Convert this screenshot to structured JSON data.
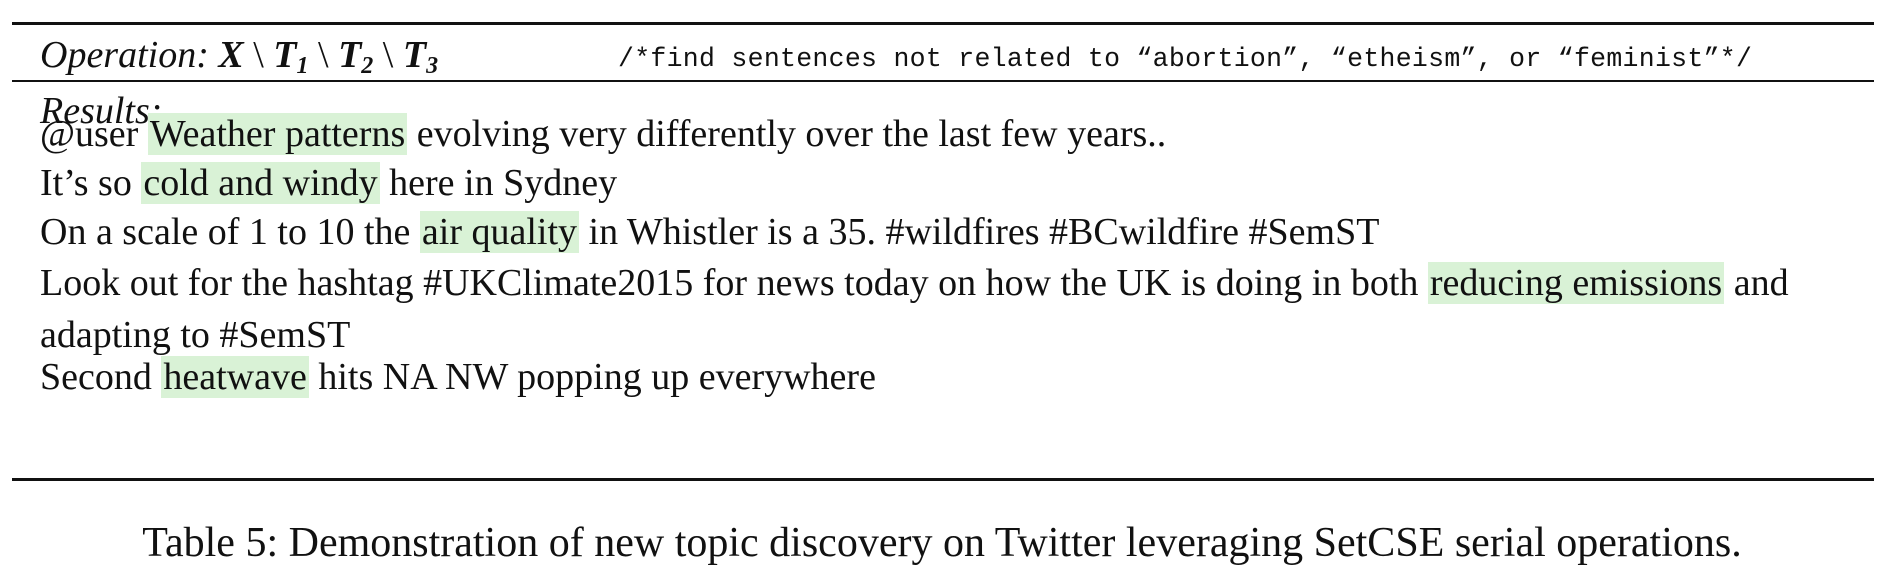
{
  "operation": {
    "label": "Operation:",
    "expr": {
      "x": "X",
      "sep": "\\",
      "t": "T",
      "sub1": "1",
      "sub2": "2",
      "sub3": "3"
    },
    "comment": "/*find sentences not related to “abortion”, “etheism”, or “feminist”*/"
  },
  "results_label": "Results:",
  "results": [
    {
      "pre": "@user ",
      "highlight": "Weather patterns",
      "post": " evolving very differently over the last few years.."
    },
    {
      "pre": "It’s so ",
      "highlight": "cold and windy",
      "post": " here in Sydney"
    },
    {
      "pre": "On a scale of 1 to 10 the ",
      "highlight": "air quality",
      "post": " in Whistler is a 35. #wildfires #BCwildfire #SemST"
    },
    {
      "pre": "Look out for the hashtag #UKClimate2015 for news today on how the UK is doing in both ",
      "highlight": "reducing emissions",
      "post": " and adapting to #SemST"
    },
    {
      "pre": "Second ",
      "highlight": "heatwave",
      "post": " hits NA NW popping up everywhere"
    }
  ],
  "highlight_color": "#d9f2d6",
  "caption": "Table 5: Demonstration of new topic discovery on Twitter leveraging SetCSE serial operations."
}
